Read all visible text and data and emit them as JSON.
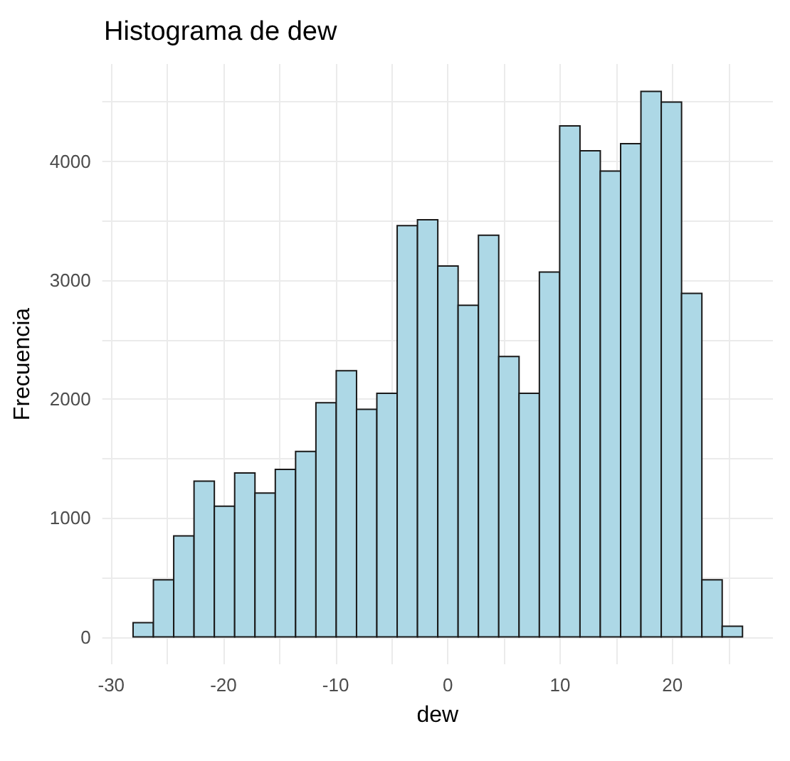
{
  "chart_data": {
    "type": "histogram",
    "title": "Histograma de dew",
    "xlabel": "dew",
    "ylabel": "Frecuencia",
    "color": "#add8e6",
    "bins": [
      -28.05,
      -26.24,
      -24.43,
      -22.62,
      -20.81,
      -19.0,
      -17.19,
      -15.38,
      -13.57,
      -11.76,
      -9.95,
      -8.14,
      -6.33,
      -4.52,
      -2.71,
      -0.9,
      0.91,
      2.72,
      4.53,
      6.34,
      8.15,
      9.96,
      11.77,
      13.58,
      15.39,
      17.2,
      19.01,
      20.82,
      22.63,
      24.44,
      26.25
    ],
    "values": [
      120,
      480,
      850,
      1310,
      1100,
      1380,
      1210,
      1410,
      1560,
      1970,
      2240,
      1915,
      2050,
      3460,
      3510,
      3120,
      2790,
      3380,
      2360,
      2050,
      3070,
      4300,
      4090,
      3920,
      4150,
      4590,
      4500,
      2890,
      480,
      90
    ],
    "xlim": [
      -30.8,
      28.96
    ],
    "ylim": [
      -230,
      4820
    ],
    "xticks": [
      -30,
      {
        "value": -25,
        "label": null
      },
      -20,
      {
        "value": -15,
        "label": null
      },
      -10,
      {
        "value": -5,
        "label": null
      },
      0,
      {
        "value": 5,
        "label": null
      },
      10,
      {
        "value": 15,
        "label": null
      },
      20,
      {
        "value": 25,
        "label": null
      }
    ],
    "yticks": [
      0,
      {
        "value": 500,
        "label": null
      },
      1000,
      {
        "value": 1500,
        "label": null
      },
      2000,
      {
        "value": 2500,
        "label": null
      },
      3000,
      {
        "value": 3500,
        "label": null
      },
      4000,
      {
        "value": 4500,
        "label": null
      }
    ],
    "grid": true
  }
}
